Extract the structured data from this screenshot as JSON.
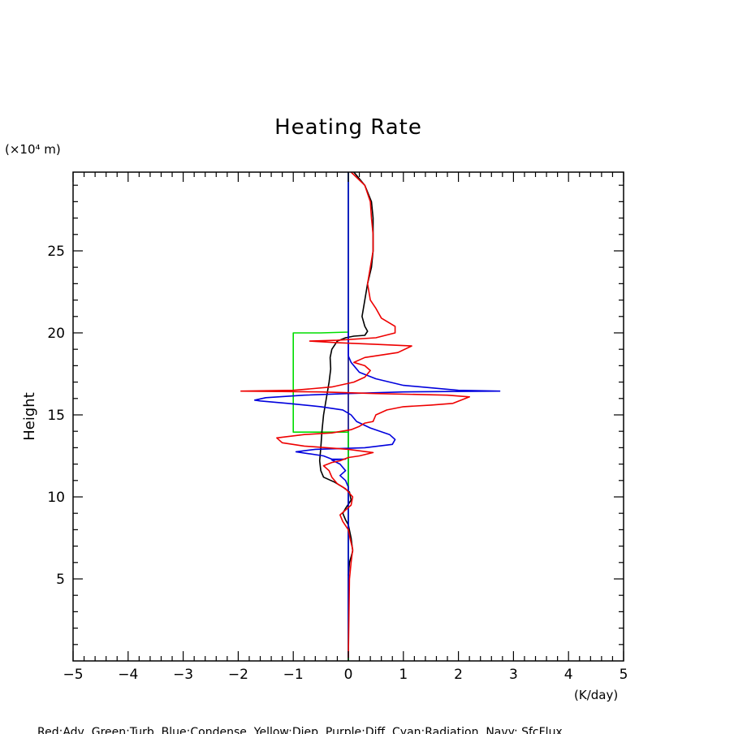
{
  "chart_data": {
    "type": "line",
    "title": "Heating Rate",
    "ylabel": "Height",
    "yunit": "(×10⁴ m)",
    "xunit": "(K/day)",
    "xlim": [
      -5,
      5
    ],
    "ylim": [
      0,
      29.8
    ],
    "xticks": [
      -5,
      -4,
      -3,
      -2,
      -1,
      0,
      1,
      2,
      3,
      4,
      5
    ],
    "yticks": [
      5,
      10,
      15,
      20,
      25
    ],
    "grid": false,
    "legend_text": "Red:Adv  Green:Turb  Blue:Condense  Yellow:Diep  Purple:Diff  Cyan:Radiation  Navy: SfcFlux",
    "series": [
      {
        "name": "Navy",
        "color": "#000080",
        "points": [
          [
            0,
            0
          ],
          [
            0,
            29.8
          ]
        ]
      },
      {
        "name": "Green",
        "color": "#00dd00",
        "points": [
          [
            0,
            0
          ],
          [
            0,
            13.95
          ],
          [
            -0.5,
            13.95
          ],
          [
            -1.0,
            13.95
          ],
          [
            -1.0,
            20.0
          ],
          [
            -0.5,
            20.0
          ],
          [
            0,
            20.05
          ],
          [
            0,
            29.8
          ]
        ]
      },
      {
        "name": "Black",
        "color": "#000000",
        "points": [
          [
            0.0,
            5.2
          ],
          [
            0.02,
            6.0
          ],
          [
            0.08,
            6.7
          ],
          [
            0.05,
            7.5
          ],
          [
            0.0,
            8.3
          ],
          [
            -0.05,
            8.6
          ],
          [
            -0.1,
            9.0
          ],
          [
            -0.05,
            9.3
          ],
          [
            0.05,
            9.8
          ],
          [
            0.02,
            10.3
          ],
          [
            -0.1,
            10.6
          ],
          [
            -0.25,
            10.9
          ],
          [
            -0.45,
            11.2
          ],
          [
            -0.5,
            11.6
          ],
          [
            -0.52,
            12.2
          ],
          [
            -0.5,
            13.0
          ],
          [
            -0.48,
            14.0
          ],
          [
            -0.45,
            15.0
          ],
          [
            -0.4,
            16.0
          ],
          [
            -0.35,
            17.0
          ],
          [
            -0.32,
            17.8
          ],
          [
            -0.33,
            18.5
          ],
          [
            -0.3,
            19.0
          ],
          [
            -0.2,
            19.5
          ],
          [
            -0.05,
            19.7
          ],
          [
            0.1,
            19.8
          ],
          [
            0.3,
            19.85
          ],
          [
            0.35,
            20.1
          ],
          [
            0.3,
            20.4
          ],
          [
            0.25,
            21.0
          ],
          [
            0.3,
            22.0
          ],
          [
            0.35,
            23.0
          ],
          [
            0.42,
            24.0
          ],
          [
            0.45,
            25.0
          ],
          [
            0.45,
            26.0
          ],
          [
            0.45,
            27.0
          ],
          [
            0.42,
            28.0
          ],
          [
            0.3,
            29.0
          ],
          [
            0.1,
            29.8
          ]
        ]
      },
      {
        "name": "Blue",
        "color": "#0000dd",
        "points": [
          [
            0.0,
            0.2
          ],
          [
            0.0,
            10.6
          ],
          [
            -0.05,
            11.0
          ],
          [
            -0.15,
            11.3
          ],
          [
            -0.05,
            11.6
          ],
          [
            -0.15,
            12.0
          ],
          [
            -0.3,
            12.25
          ],
          [
            -0.05,
            12.3
          ],
          [
            -0.3,
            12.3
          ],
          [
            -0.45,
            12.5
          ],
          [
            -0.95,
            12.75
          ],
          [
            -0.6,
            12.9
          ],
          [
            0.3,
            13.0
          ],
          [
            0.8,
            13.2
          ],
          [
            0.85,
            13.5
          ],
          [
            0.75,
            13.8
          ],
          [
            0.4,
            14.2
          ],
          [
            0.15,
            14.6
          ],
          [
            0.05,
            15.0
          ],
          [
            -0.1,
            15.3
          ],
          [
            -0.5,
            15.5
          ],
          [
            -1.1,
            15.7
          ],
          [
            -1.6,
            15.85
          ],
          [
            -1.7,
            15.9
          ],
          [
            -1.5,
            16.05
          ],
          [
            -0.8,
            16.2
          ],
          [
            0.0,
            16.3
          ],
          [
            1.0,
            16.4
          ],
          [
            2.75,
            16.45
          ],
          [
            2.0,
            16.5
          ],
          [
            1.0,
            16.8
          ],
          [
            0.5,
            17.2
          ],
          [
            0.2,
            17.6
          ],
          [
            0.05,
            18.2
          ],
          [
            0.0,
            18.6
          ],
          [
            0.0,
            29.8
          ]
        ]
      },
      {
        "name": "Red",
        "color": "#ee0000",
        "points": [
          [
            0.0,
            0.2
          ],
          [
            0.02,
            5.0
          ],
          [
            0.05,
            6.0
          ],
          [
            0.08,
            6.8
          ],
          [
            0.03,
            7.5
          ],
          [
            0.0,
            8.0
          ],
          [
            -0.1,
            8.5
          ],
          [
            -0.15,
            8.9
          ],
          [
            -0.05,
            9.2
          ],
          [
            0.05,
            9.5
          ],
          [
            0.08,
            10.0
          ],
          [
            -0.05,
            10.5
          ],
          [
            -0.2,
            10.8
          ],
          [
            -0.3,
            11.2
          ],
          [
            -0.35,
            11.6
          ],
          [
            -0.45,
            11.9
          ],
          [
            -0.3,
            12.1
          ],
          [
            -0.15,
            12.2
          ],
          [
            0.0,
            12.4
          ],
          [
            0.2,
            12.5
          ],
          [
            0.45,
            12.7
          ],
          [
            0.0,
            12.9
          ],
          [
            -0.8,
            13.1
          ],
          [
            -1.2,
            13.3
          ],
          [
            -1.3,
            13.6
          ],
          [
            -0.8,
            13.8
          ],
          [
            -0.3,
            13.9
          ],
          [
            0.05,
            14.1
          ],
          [
            0.2,
            14.3
          ],
          [
            0.3,
            14.5
          ],
          [
            0.45,
            14.6
          ],
          [
            0.5,
            15.0
          ],
          [
            0.7,
            15.3
          ],
          [
            1.0,
            15.5
          ],
          [
            1.5,
            15.6
          ],
          [
            1.9,
            15.7
          ],
          [
            2.2,
            16.1
          ],
          [
            1.8,
            16.2
          ],
          [
            0.5,
            16.3
          ],
          [
            -0.5,
            16.4
          ],
          [
            -1.95,
            16.45
          ],
          [
            -1.0,
            16.5
          ],
          [
            -0.3,
            16.7
          ],
          [
            0.1,
            17.0
          ],
          [
            0.3,
            17.3
          ],
          [
            0.4,
            17.7
          ],
          [
            0.3,
            18.0
          ],
          [
            0.1,
            18.2
          ],
          [
            0.3,
            18.5
          ],
          [
            0.9,
            18.8
          ],
          [
            1.15,
            19.2
          ],
          [
            0.5,
            19.3
          ],
          [
            -0.2,
            19.4
          ],
          [
            -0.7,
            19.5
          ],
          [
            -0.2,
            19.55
          ],
          [
            0.5,
            19.7
          ],
          [
            0.85,
            20.0
          ],
          [
            0.85,
            20.4
          ],
          [
            0.6,
            20.9
          ],
          [
            0.5,
            21.5
          ],
          [
            0.4,
            22.0
          ],
          [
            0.35,
            23.0
          ],
          [
            0.4,
            24.0
          ],
          [
            0.45,
            25.0
          ],
          [
            0.45,
            26.0
          ],
          [
            0.42,
            27.0
          ],
          [
            0.4,
            28.0
          ],
          [
            0.3,
            29.0
          ],
          [
            0.05,
            29.8
          ]
        ]
      }
    ]
  }
}
